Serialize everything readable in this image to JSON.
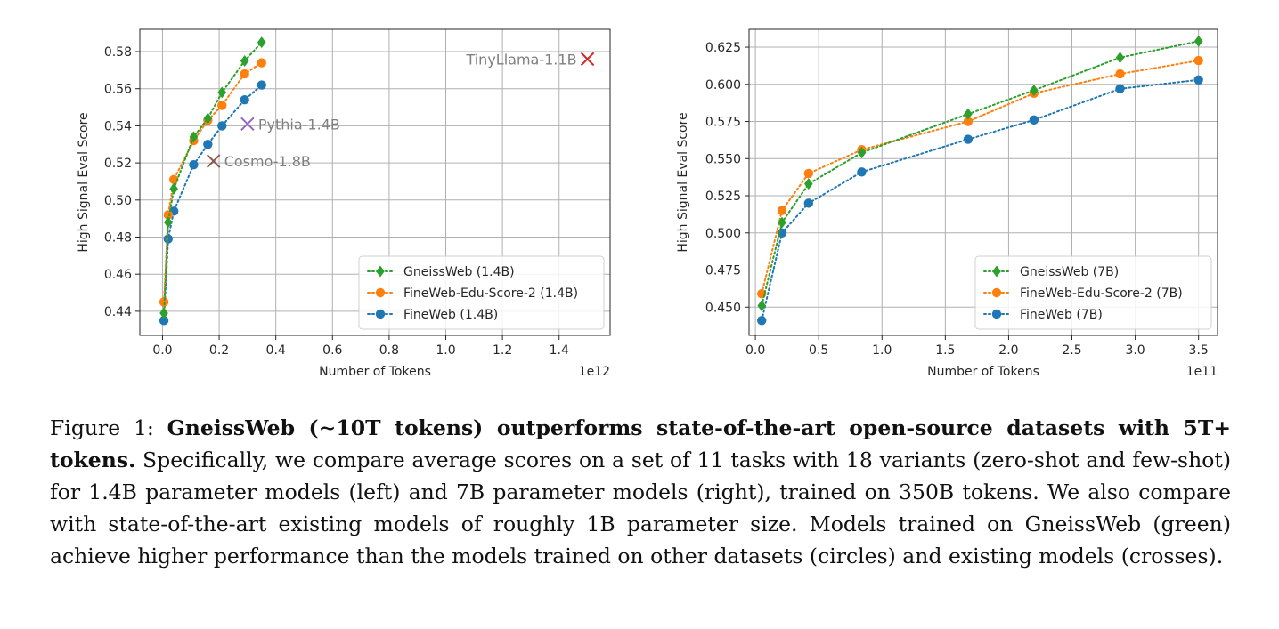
{
  "chart_data": [
    {
      "type": "line",
      "xlabel": "Number of Tokens",
      "ylabel": "High Signal Eval Score",
      "offset_label": "1e12",
      "xlim": [
        -0.08,
        1.58
      ],
      "ylim": [
        0.427,
        0.592
      ],
      "xticks": [
        0.0,
        0.2,
        0.4,
        0.6,
        0.8,
        1.0,
        1.2,
        1.4
      ],
      "xtick_labels": [
        "0.0",
        "0.2",
        "0.4",
        "0.6",
        "0.8",
        "1.0",
        "1.2",
        "1.4"
      ],
      "yticks": [
        0.44,
        0.46,
        0.48,
        0.5,
        0.52,
        0.54,
        0.56,
        0.58
      ],
      "ytick_labels": [
        "0.44",
        "0.46",
        "0.48",
        "0.50",
        "0.52",
        "0.54",
        "0.56",
        "0.58"
      ],
      "grid": true,
      "legend_position": "lower-right",
      "series": [
        {
          "name": "GneissWeb (1.4B)",
          "color": "#2ca02c",
          "marker": "diamond",
          "x": [
            0.005,
            0.02,
            0.04,
            0.11,
            0.16,
            0.21,
            0.29,
            0.35
          ],
          "y": [
            0.439,
            0.488,
            0.506,
            0.534,
            0.544,
            0.558,
            0.575,
            0.585
          ]
        },
        {
          "name": "FineWeb-Edu-Score-2 (1.4B)",
          "color": "#ff7f0e",
          "marker": "circle",
          "x": [
            0.005,
            0.02,
            0.04,
            0.11,
            0.16,
            0.21,
            0.29,
            0.35
          ],
          "y": [
            0.445,
            0.492,
            0.511,
            0.532,
            0.543,
            0.551,
            0.568,
            0.574
          ]
        },
        {
          "name": "FineWeb (1.4B)",
          "color": "#1f77b4",
          "marker": "circle",
          "x": [
            0.005,
            0.02,
            0.04,
            0.11,
            0.16,
            0.21,
            0.29,
            0.35
          ],
          "y": [
            0.435,
            0.479,
            0.494,
            0.519,
            0.53,
            0.54,
            0.554,
            0.562
          ]
        }
      ],
      "annotations": [
        {
          "label": "TinyLlama-1.1B",
          "x": 1.5,
          "y": 0.576,
          "color": "#d62728",
          "label_side": "left"
        },
        {
          "label": "Pythia-1.4B",
          "x": 0.3,
          "y": 0.541,
          "color": "#9467bd",
          "label_side": "right"
        },
        {
          "label": "Cosmo-1.8B",
          "x": 0.18,
          "y": 0.521,
          "color": "#8c564b",
          "label_side": "right"
        }
      ]
    },
    {
      "type": "line",
      "xlabel": "Number of Tokens",
      "ylabel": "High Signal Eval Score",
      "offset_label": "1e11",
      "xlim": [
        -0.05,
        3.65
      ],
      "ylim": [
        0.431,
        0.637
      ],
      "xticks": [
        0.0,
        0.5,
        1.0,
        1.5,
        2.0,
        2.5,
        3.0,
        3.5
      ],
      "xtick_labels": [
        "0.0",
        "0.5",
        "1.0",
        "1.5",
        "2.0",
        "2.5",
        "3.0",
        "3.5"
      ],
      "yticks": [
        0.45,
        0.475,
        0.5,
        0.525,
        0.55,
        0.575,
        0.6,
        0.625
      ],
      "ytick_labels": [
        "0.450",
        "0.475",
        "0.500",
        "0.525",
        "0.550",
        "0.575",
        "0.600",
        "0.625"
      ],
      "grid": true,
      "legend_position": "lower-right",
      "series": [
        {
          "name": "GneissWeb (7B)",
          "color": "#2ca02c",
          "marker": "diamond",
          "x": [
            0.05,
            0.21,
            0.42,
            0.84,
            1.68,
            2.2,
            2.88,
            3.5
          ],
          "y": [
            0.451,
            0.507,
            0.533,
            0.554,
            0.58,
            0.596,
            0.618,
            0.629
          ]
        },
        {
          "name": "FineWeb-Edu-Score-2 (7B)",
          "color": "#ff7f0e",
          "marker": "circle",
          "x": [
            0.05,
            0.21,
            0.42,
            0.84,
            1.68,
            2.2,
            2.88,
            3.5
          ],
          "y": [
            0.459,
            0.515,
            0.54,
            0.556,
            0.575,
            0.594,
            0.607,
            0.616
          ]
        },
        {
          "name": "FineWeb (7B)",
          "color": "#1f77b4",
          "marker": "circle",
          "x": [
            0.05,
            0.21,
            0.42,
            0.84,
            1.68,
            2.2,
            2.88,
            3.5
          ],
          "y": [
            0.441,
            0.5,
            0.52,
            0.541,
            0.563,
            0.576,
            0.597,
            0.603
          ]
        }
      ],
      "annotations": []
    }
  ],
  "caption": {
    "prefix": "Figure 1: ",
    "bold": "GneissWeb (∼10T tokens) outperforms state-of-the-art open-source datasets with 5T+ tokens.",
    "body": " Specifically, we compare average scores on a set of 11 tasks with 18 variants (zero-shot and few-shot) for 1.4B parameter models (left) and 7B parameter models (right), trained on 350B tokens. We also compare with state-of-the-art existing models of roughly 1B parameter size. Models trained on GneissWeb (green) achieve higher performance than the models trained on other datasets (circles) and existing models (crosses)."
  }
}
